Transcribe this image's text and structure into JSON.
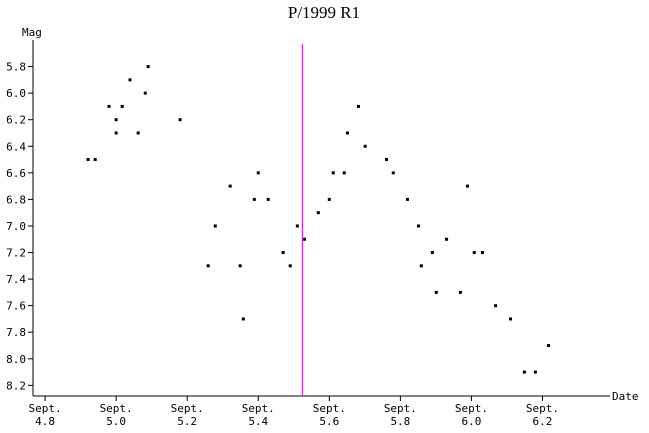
{
  "chart_data": {
    "type": "scatter",
    "title": "P/1999 R1",
    "y_label": "Mag",
    "x_label": "Date",
    "color": "#000000",
    "marker_color": "#cc00cc",
    "marker_x": 5.524,
    "x": [
      4.921,
      4.941,
      4.98,
      5.0,
      5.0,
      5.017,
      5.039,
      5.062,
      5.082,
      5.09,
      5.18,
      5.259,
      5.279,
      5.321,
      5.349,
      5.358,
      5.389,
      5.4,
      5.428,
      5.47,
      5.49,
      5.51,
      5.53,
      5.569,
      5.6,
      5.611,
      5.642,
      5.651,
      5.682,
      5.701,
      5.761,
      5.78,
      5.82,
      5.851,
      5.859,
      5.89,
      5.901,
      5.93,
      5.969,
      5.989,
      6.008,
      6.031,
      6.068,
      6.11,
      6.149,
      6.18,
      6.217
    ],
    "values": [
      6.5,
      6.5,
      6.1,
      6.2,
      6.3,
      6.1,
      5.9,
      6.3,
      6.0,
      5.8,
      6.2,
      7.3,
      7.0,
      6.7,
      7.3,
      7.7,
      6.8,
      6.6,
      6.8,
      7.2,
      7.3,
      7.0,
      7.1,
      6.9,
      6.8,
      6.6,
      6.6,
      6.3,
      6.1,
      6.4,
      6.5,
      6.6,
      6.8,
      7.0,
      7.3,
      7.2,
      7.5,
      7.1,
      7.5,
      6.7,
      7.2,
      7.2,
      7.6,
      7.7,
      8.1,
      8.1,
      7.9
    ],
    "xlim": [
      4.766,
      6.39
    ],
    "ylim": [
      5.6,
      8.28
    ],
    "y_inverted": true,
    "xticks": [
      {
        "value": 4.8,
        "label": "Sept. 4.8"
      },
      {
        "value": 5.0,
        "label": "Sept. 5.0"
      },
      {
        "value": 5.2,
        "label": "Sept. 5.2"
      },
      {
        "value": 5.4,
        "label": "Sept. 5.4"
      },
      {
        "value": 5.6,
        "label": "Sept. 5.6"
      },
      {
        "value": 5.8,
        "label": "Sept. 5.8"
      },
      {
        "value": 6.0,
        "label": "Sept. 6.0"
      },
      {
        "value": 6.2,
        "label": "Sept. 6.2"
      }
    ],
    "yticks": [
      5.8,
      {
        "value": 6,
        "label": "6.0"
      },
      6.2,
      6.4,
      6.6,
      6.8,
      {
        "value": 7,
        "label": "7.0"
      },
      7.2,
      7.4,
      7.6,
      7.8,
      {
        "value": 8,
        "label": "8.0"
      },
      8.2
    ]
  }
}
